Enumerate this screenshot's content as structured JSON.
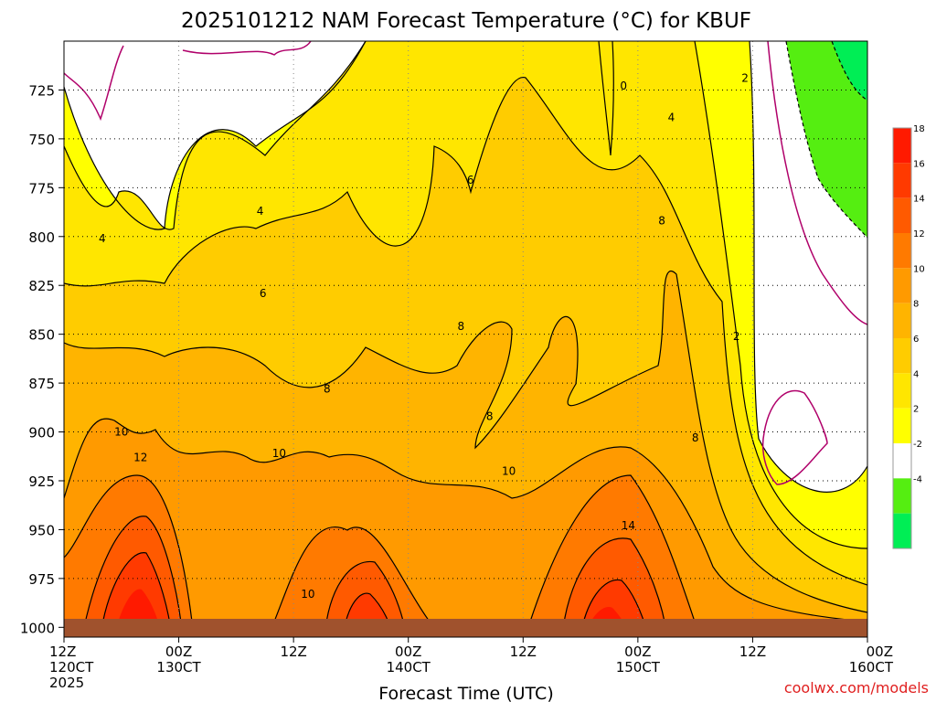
{
  "chart_data": {
    "type": "heatmap",
    "title": "2025101212 NAM Forecast Temperature (°C) for KBUF",
    "xlabel": "Forecast Time (UTC)",
    "ylabel": "",
    "x_ticks": [
      {
        "hour": 0,
        "line1": "12Z",
        "line2": "120CT",
        "line3": "2025"
      },
      {
        "hour": 12,
        "line1": "00Z",
        "line2": "130CT",
        "line3": ""
      },
      {
        "hour": 24,
        "line1": "12Z",
        "line2": "",
        "line3": ""
      },
      {
        "hour": 36,
        "line1": "00Z",
        "line2": "140CT",
        "line3": ""
      },
      {
        "hour": 48,
        "line1": "12Z",
        "line2": "",
        "line3": ""
      },
      {
        "hour": 60,
        "line1": "00Z",
        "line2": "150CT",
        "line3": ""
      },
      {
        "hour": 72,
        "line1": "12Z",
        "line2": "",
        "line3": ""
      },
      {
        "hour": 84,
        "line1": "00Z",
        "line2": "160CT",
        "line3": ""
      }
    ],
    "xlim": [
      0,
      84
    ],
    "y_ticks": [
      725,
      750,
      775,
      800,
      825,
      850,
      875,
      900,
      925,
      950,
      975,
      1000
    ],
    "ylim": [
      1005,
      700
    ],
    "grid": true,
    "colorbar": {
      "labels": [
        "18",
        "16",
        "14",
        "12",
        "10",
        "8",
        "6",
        "4",
        "2",
        "-2",
        "-4"
      ],
      "bands": [
        {
          "from": 18,
          "to": 20,
          "color": "#ff1a00"
        },
        {
          "from": 16,
          "to": 18,
          "color": "#ff3a00"
        },
        {
          "from": 14,
          "to": 16,
          "color": "#ff5a00"
        },
        {
          "from": 12,
          "to": 14,
          "color": "#ff7a00"
        },
        {
          "from": 10,
          "to": 12,
          "color": "#ff9a00"
        },
        {
          "from": 8,
          "to": 10,
          "color": "#ffb400"
        },
        {
          "from": 6,
          "to": 8,
          "color": "#ffcc00"
        },
        {
          "from": 4,
          "to": 6,
          "color": "#ffe600"
        },
        {
          "from": 2,
          "to": 4,
          "color": "#ffff00"
        },
        {
          "from": -2,
          "to": 2,
          "color": "#ffffff"
        },
        {
          "from": -4,
          "to": -2,
          "color": "#55ee11"
        },
        {
          "from": -6,
          "to": -4,
          "color": "#00ee55"
        }
      ]
    },
    "contour_labels": [
      {
        "text": "0",
        "hour": 58.5,
        "p": 723
      },
      {
        "text": "2",
        "hour": 71.2,
        "p": 719
      },
      {
        "text": "2",
        "hour": 70.3,
        "p": 851
      },
      {
        "text": "4",
        "hour": 63.5,
        "p": 739
      },
      {
        "text": "4",
        "hour": 20.5,
        "p": 787
      },
      {
        "text": "4",
        "hour": 4.0,
        "p": 801
      },
      {
        "text": "6",
        "hour": 42.5,
        "p": 771
      },
      {
        "text": "6",
        "hour": 20.8,
        "p": 829
      },
      {
        "text": "8",
        "hour": 62.5,
        "p": 792
      },
      {
        "text": "8",
        "hour": 41.5,
        "p": 846
      },
      {
        "text": "8",
        "hour": 27.5,
        "p": 878
      },
      {
        "text": "8",
        "hour": 44.5,
        "p": 892
      },
      {
        "text": "8",
        "hour": 66.0,
        "p": 903
      },
      {
        "text": "10",
        "hour": 6.0,
        "p": 900
      },
      {
        "text": "10",
        "hour": 22.5,
        "p": 911
      },
      {
        "text": "10",
        "hour": 46.5,
        "p": 920
      },
      {
        "text": "10",
        "hour": 25.5,
        "p": 983
      },
      {
        "text": "12",
        "hour": 8.0,
        "p": 913
      },
      {
        "text": "14",
        "hour": 59.0,
        "p": 948
      }
    ]
  },
  "watermark": "coolwx.com/models",
  "colors": {
    "ground": "#a0522d",
    "zero_line": "#b0006a",
    "grid": "#000000"
  }
}
